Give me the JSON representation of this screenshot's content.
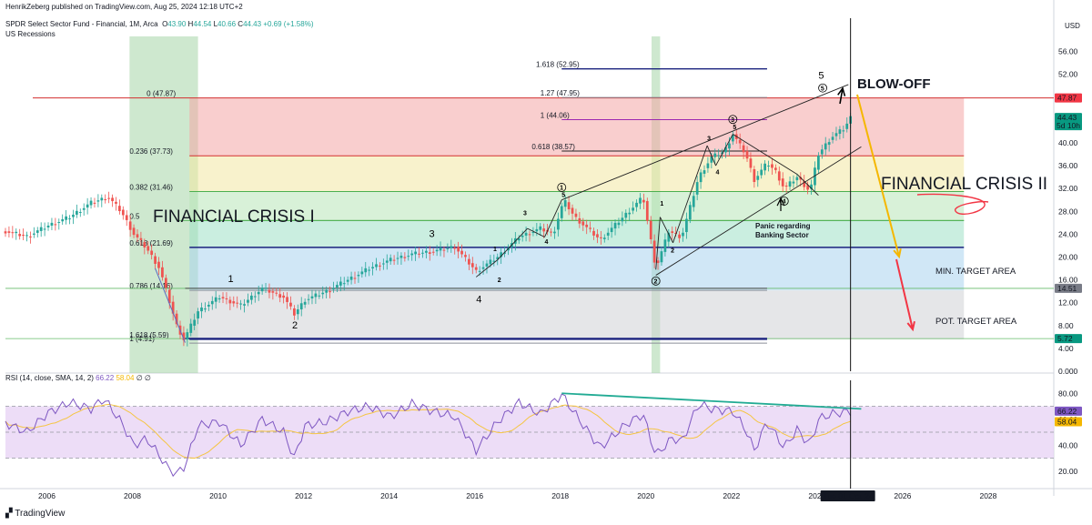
{
  "header": {
    "publisher_line": "HenrikZeberg published on TradingView.com, Aug 25, 2024 12:18 UTC+2",
    "symbol_line_prefix": "SPDR Select Sector Fund - Financial, 1M, Arca",
    "ohlc": {
      "O": "43.90",
      "H": "44.54",
      "L": "40.66",
      "C": "44.43",
      "change": "+0.69 (+1.58%)"
    },
    "recessions_label": "US Recessions",
    "currency": "USD"
  },
  "colors": {
    "up": "#26a69a",
    "down": "#ef5350",
    "recession": "#a5d6a7",
    "red_annotation": "#f23645",
    "orange_arrow": "#f5b700",
    "rsi_line": "#7e57c2",
    "rsi_ma": "#f5c542",
    "divergence_line": "#22ab94",
    "fib_blue": "#1a237e",
    "fib_purple": "#9c27b0"
  },
  "chart_data": [
    {
      "type": "line",
      "series_type": "candlestick (monthly)",
      "ylim": [
        0,
        58
      ],
      "xlim": [
        2005,
        2029.5
      ],
      "y_ticks": [
        "56.00",
        "52.00",
        "48.00",
        "44.00",
        "40.00",
        "36.00",
        "32.00",
        "28.00",
        "24.00",
        "20.00",
        "16.00",
        "12.00",
        "8.00",
        "4.00",
        "0.000"
      ],
      "x_ticks": [
        "2006",
        "2008",
        "2010",
        "2012",
        "2014",
        "2016",
        "2018",
        "2020",
        "2022",
        "2024",
        "2026",
        "2028"
      ],
      "price_badges": [
        {
          "label": "47.87",
          "kind": "red"
        },
        {
          "label": "44.43",
          "sub": "5d 10h",
          "kind": "green"
        },
        {
          "label": "14.51",
          "kind": "grey"
        },
        {
          "label": "5.72",
          "kind": "green"
        }
      ],
      "cursor_date_label": "Tue 01 Oct '24",
      "recession_shading": [
        [
          2007.9,
          2009.5
        ],
        [
          2020.1,
          2020.3
        ]
      ],
      "price_path": [
        [
          2005.0,
          24.5
        ],
        [
          2005.5,
          23.6
        ],
        [
          2006.0,
          25.5
        ],
        [
          2006.5,
          27.0
        ],
        [
          2007.0,
          29.5
        ],
        [
          2007.4,
          30.5
        ],
        [
          2007.7,
          28.0
        ],
        [
          2008.0,
          24.0
        ],
        [
          2008.3,
          21.5
        ],
        [
          2008.6,
          18.0
        ],
        [
          2008.8,
          13.0
        ],
        [
          2009.0,
          8.0
        ],
        [
          2009.17,
          5.5
        ],
        [
          2009.5,
          10.5
        ],
        [
          2010.0,
          13.0
        ],
        [
          2010.5,
          11.5
        ],
        [
          2011.0,
          14.5
        ],
        [
          2011.5,
          13.0
        ],
        [
          2011.75,
          10.0
        ],
        [
          2012.0,
          12.5
        ],
        [
          2012.5,
          14.0
        ],
        [
          2013.0,
          16.0
        ],
        [
          2013.5,
          18.0
        ],
        [
          2014.0,
          19.5
        ],
        [
          2014.5,
          20.5
        ],
        [
          2015.0,
          21.0
        ],
        [
          2015.5,
          21.8
        ],
        [
          2016.0,
          17.5
        ],
        [
          2016.5,
          20.0
        ],
        [
          2017.0,
          23.5
        ],
        [
          2017.5,
          25.0
        ],
        [
          2017.8,
          24.0
        ],
        [
          2018.05,
          30.0
        ],
        [
          2018.3,
          27.0
        ],
        [
          2018.9,
          23.0
        ],
        [
          2019.5,
          27.5
        ],
        [
          2019.9,
          30.5
        ],
        [
          2020.2,
          18.0
        ],
        [
          2020.5,
          24.5
        ],
        [
          2020.8,
          23.5
        ],
        [
          2021.2,
          34.0
        ],
        [
          2021.5,
          37.5
        ],
        [
          2021.8,
          38.5
        ],
        [
          2022.0,
          41.5
        ],
        [
          2022.3,
          38.0
        ],
        [
          2022.5,
          33.5
        ],
        [
          2022.8,
          36.5
        ],
        [
          2023.0,
          35.0
        ],
        [
          2023.2,
          32.0
        ],
        [
          2023.5,
          34.0
        ],
        [
          2023.8,
          31.5
        ],
        [
          2024.0,
          38.0
        ],
        [
          2024.3,
          41.0
        ],
        [
          2024.6,
          42.5
        ],
        [
          2024.75,
          44.43
        ]
      ],
      "fib_levels": [
        {
          "label": "1.618 (52.95)",
          "value": 52.95,
          "color": "blue"
        },
        {
          "label": "0 (47.87)",
          "value": 47.87,
          "color": "red"
        },
        {
          "label": "1.27 (47.95)",
          "value": 47.95,
          "color": "grey"
        },
        {
          "label": "1 (44.06)",
          "value": 44.06,
          "color": "purple"
        },
        {
          "label": "0.618 (38.57)",
          "value": 38.57,
          "color": "black"
        },
        {
          "label": "0.236 (37.73)",
          "value": 37.73,
          "color": "red"
        },
        {
          "label": "0.382 (31.46)",
          "value": 31.46,
          "color": "green"
        },
        {
          "label": "0.5",
          "value": 26.4,
          "color": "green"
        },
        {
          "label": "0.618 (21.69)",
          "value": 21.69,
          "color": "blue"
        },
        {
          "label": "0.786 (14.16)",
          "value": 14.16,
          "color": "grey"
        },
        {
          "label": "1.618 (5.59)",
          "value": 5.59,
          "color": "blue"
        },
        {
          "label": "1 (4.91)",
          "value": 4.91,
          "color": "grey"
        }
      ],
      "annotations": {
        "blow_off": "BLOW-OFF",
        "financial_crisis_1": "FINANCIAL CRISIS I",
        "financial_crisis_2": "FINANCIAL CRISIS II",
        "panic_line1": "Panic regarding",
        "panic_line2": "Banking Sector",
        "min_target": "MIN. TARGET AREA",
        "pot_target": "POT. TARGET AREA"
      },
      "wave_labels": [
        {
          "t": "1",
          "x": 2010.2,
          "y": 15.6,
          "big": true
        },
        {
          "t": "2",
          "x": 2011.7,
          "y": 7.5,
          "big": true
        },
        {
          "t": "3",
          "x": 2014.9,
          "y": 23.5,
          "big": true
        },
        {
          "t": "4",
          "x": 2016.0,
          "y": 12.0,
          "big": true
        },
        {
          "t": "5",
          "x": 2024.0,
          "y": 51.2,
          "big": true
        },
        {
          "t": "1",
          "x": 2016.4,
          "y": 21.0,
          "big": false
        },
        {
          "t": "2",
          "x": 2016.5,
          "y": 15.6,
          "big": false
        },
        {
          "t": "3",
          "x": 2017.1,
          "y": 27.3,
          "big": false
        },
        {
          "t": "4",
          "x": 2017.6,
          "y": 22.3,
          "big": false
        },
        {
          "t": "5",
          "x": 2018.0,
          "y": 30.5,
          "big": false
        },
        {
          "t": "1",
          "x": 2020.3,
          "y": 29.0,
          "big": false
        },
        {
          "t": "2",
          "x": 2020.55,
          "y": 20.8,
          "big": false
        },
        {
          "t": "3",
          "x": 2021.4,
          "y": 40.4,
          "big": false
        },
        {
          "t": "4",
          "x": 2021.6,
          "y": 34.5,
          "big": false
        },
        {
          "t": "5",
          "x": 2022.0,
          "y": 42.4,
          "big": false
        }
      ],
      "circled_labels": [
        {
          "t": "1",
          "x": 2018.0,
          "y": 32.2
        },
        {
          "t": "2",
          "x": 2020.2,
          "y": 15.8
        },
        {
          "t": "3",
          "x": 2022.0,
          "y": 44.1
        },
        {
          "t": "4",
          "x": 2023.2,
          "y": 29.8
        },
        {
          "t": "5",
          "x": 2024.1,
          "y": 49.6
        }
      ]
    },
    {
      "type": "line",
      "title": "RSI (14, close, SMA, 14, 2)",
      "values_label": [
        "66.22",
        "58.04",
        "∅",
        "∅"
      ],
      "ylim": [
        10,
        90
      ],
      "y_ticks": [
        "80.00",
        "60.00",
        "40.00",
        "20.00"
      ],
      "bands": {
        "upper": 70,
        "mid": 50,
        "lower": 30
      },
      "rsi_path": [
        [
          2005.0,
          57
        ],
        [
          2005.5,
          50
        ],
        [
          2006.0,
          65
        ],
        [
          2006.5,
          73
        ],
        [
          2007.0,
          68
        ],
        [
          2007.3,
          76
        ],
        [
          2007.7,
          58
        ],
        [
          2008.0,
          40
        ],
        [
          2008.3,
          45
        ],
        [
          2008.6,
          32
        ],
        [
          2008.8,
          22
        ],
        [
          2009.0,
          18
        ],
        [
          2009.2,
          24
        ],
        [
          2009.5,
          55
        ],
        [
          2010.0,
          58
        ],
        [
          2010.5,
          40
        ],
        [
          2011.0,
          60
        ],
        [
          2011.5,
          50
        ],
        [
          2011.75,
          30
        ],
        [
          2012.0,
          55
        ],
        [
          2012.5,
          58
        ],
        [
          2013.0,
          66
        ],
        [
          2013.5,
          70
        ],
        [
          2014.0,
          62
        ],
        [
          2014.5,
          72
        ],
        [
          2015.0,
          66
        ],
        [
          2015.5,
          62
        ],
        [
          2016.0,
          36
        ],
        [
          2016.5,
          58
        ],
        [
          2017.0,
          73
        ],
        [
          2017.5,
          64
        ],
        [
          2018.0,
          79
        ],
        [
          2018.4,
          60
        ],
        [
          2018.9,
          38
        ],
        [
          2019.5,
          56
        ],
        [
          2019.9,
          64
        ],
        [
          2020.2,
          32
        ],
        [
          2020.6,
          46
        ],
        [
          2020.8,
          42
        ],
        [
          2021.2,
          72
        ],
        [
          2021.5,
          68
        ],
        [
          2022.0,
          66
        ],
        [
          2022.3,
          52
        ],
        [
          2022.5,
          36
        ],
        [
          2022.8,
          58
        ],
        [
          2023.0,
          48
        ],
        [
          2023.2,
          38
        ],
        [
          2023.5,
          52
        ],
        [
          2023.8,
          40
        ],
        [
          2024.0,
          60
        ],
        [
          2024.3,
          64
        ],
        [
          2024.75,
          66.2
        ]
      ]
    }
  ],
  "footer": {
    "brand": "TradingView"
  }
}
